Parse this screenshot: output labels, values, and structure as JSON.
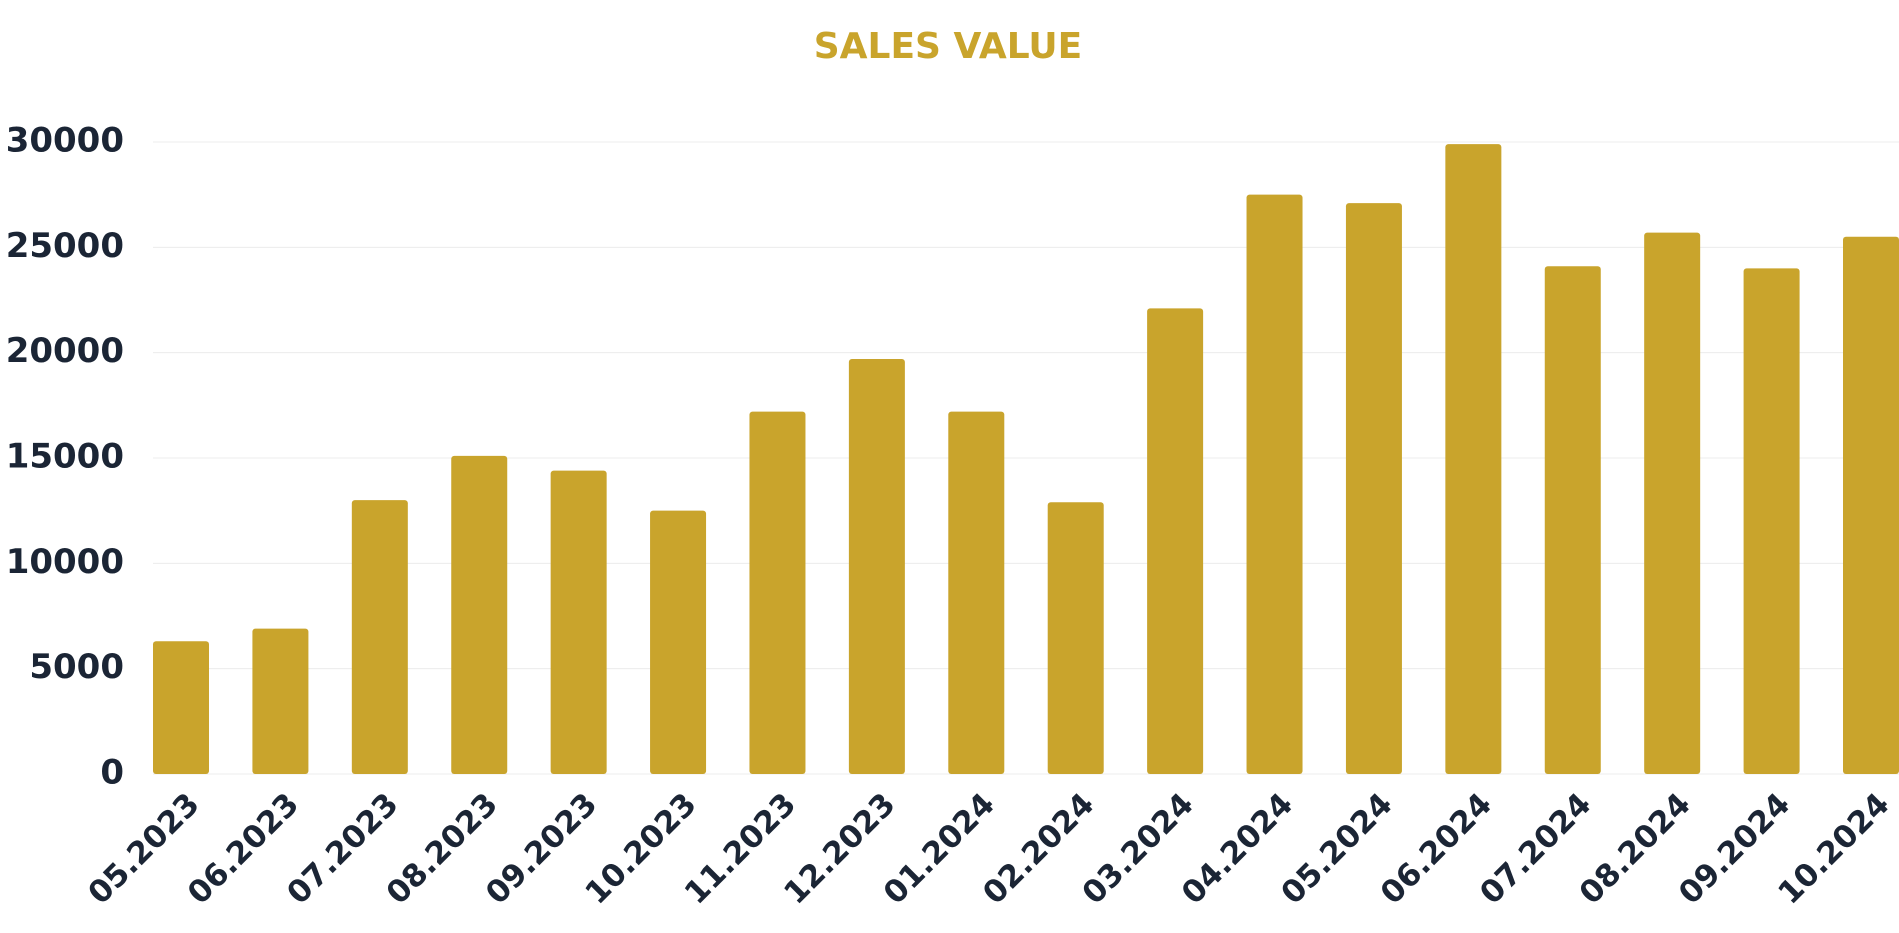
{
  "chart_data": {
    "type": "bar",
    "title": "SALES VALUE",
    "categories": [
      "05.2023",
      "06.2023",
      "07.2023",
      "08.2023",
      "09.2023",
      "10.2023",
      "11.2023",
      "12.2023",
      "01.2024",
      "02.2024",
      "03.2024",
      "04.2024",
      "05.2024",
      "06.2024",
      "07.2024",
      "08.2024",
      "09.2024",
      "10.2024"
    ],
    "values": [
      6300,
      6900,
      13000,
      15100,
      14400,
      12500,
      17200,
      19700,
      17200,
      12900,
      22100,
      27500,
      27100,
      29900,
      24100,
      25700,
      24000,
      25500
    ],
    "color": "#c9a42c",
    "ylim": [
      0,
      30000
    ],
    "yticks": [
      0,
      5000,
      10000,
      15000,
      20000,
      25000,
      30000
    ],
    "grid": true
  }
}
